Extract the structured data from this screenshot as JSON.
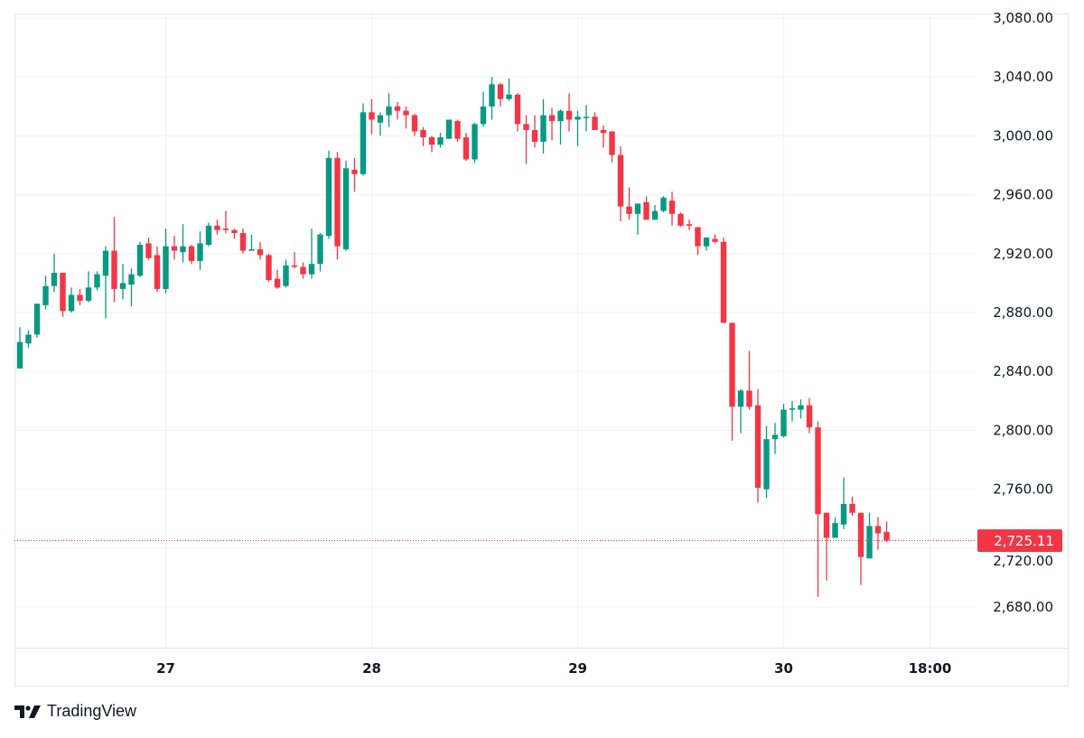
{
  "brand": {
    "name": "TradingView"
  },
  "colors": {
    "up": "#089981",
    "down": "#f23645",
    "grid": "#f0f3fa",
    "border": "#e0e3eb",
    "text": "#131722"
  },
  "chart_data": {
    "type": "candlestick",
    "interval": "1h",
    "ylim": [
      2680,
      3080
    ],
    "grid": true,
    "y_ticks": [
      "2,680.00",
      "2,720.00",
      "2,760.00",
      "2,800.00",
      "2,840.00",
      "2,880.00",
      "2,920.00",
      "2,960.00",
      "3,000.00",
      "3,040.00",
      "3,080.00"
    ],
    "y_tick_values": [
      2680,
      2720,
      2760,
      2800,
      2840,
      2880,
      2920,
      2960,
      3000,
      3040,
      3080
    ],
    "x_ticks": [
      {
        "label": "27",
        "t": "27 00:00"
      },
      {
        "label": "28",
        "t": "28 00:00"
      },
      {
        "label": "29",
        "t": "29 00:00"
      },
      {
        "label": "30",
        "t": "30 00:00"
      },
      {
        "label": "18:00",
        "t": "30 18:00"
      }
    ],
    "last_price": 2725.11,
    "last_price_label": "2,725.11",
    "candles_fields": [
      "t",
      "open",
      "high",
      "low",
      "close"
    ],
    "candles": [
      [
        "26 07:00",
        2842,
        2870,
        2842,
        2860
      ],
      [
        "26 08:00",
        2859,
        2868,
        2856,
        2865
      ],
      [
        "26 09:00",
        2865,
        2886,
        2863,
        2886
      ],
      [
        "26 10:00",
        2885,
        2905,
        2882,
        2898
      ],
      [
        "26 11:00",
        2898,
        2920,
        2894,
        2907
      ],
      [
        "26 12:00",
        2907,
        2907,
        2877,
        2881
      ],
      [
        "26 13:00",
        2881,
        2897,
        2880,
        2892
      ],
      [
        "26 14:00",
        2892,
        2896,
        2885,
        2888
      ],
      [
        "26 15:00",
        2888,
        2908,
        2887,
        2897
      ],
      [
        "26 16:00",
        2897,
        2908,
        2895,
        2906
      ],
      [
        "26 17:00",
        2905,
        2925,
        2876,
        2922
      ],
      [
        "26 18:00",
        2922,
        2945,
        2887,
        2896
      ],
      [
        "26 19:00",
        2896,
        2913,
        2889,
        2900
      ],
      [
        "26 20:00",
        2899,
        2910,
        2884,
        2906
      ],
      [
        "26 21:00",
        2905,
        2928,
        2904,
        2926
      ],
      [
        "26 22:00",
        2927,
        2931,
        2916,
        2917
      ],
      [
        "26 23:00",
        2919,
        2925,
        2894,
        2896
      ],
      [
        "27 00:00",
        2896,
        2937,
        2893,
        2925
      ],
      [
        "27 01:00",
        2925,
        2932,
        2916,
        2922
      ],
      [
        "27 02:00",
        2921,
        2940,
        2914,
        2925
      ],
      [
        "27 03:00",
        2925,
        2926,
        2913,
        2915
      ],
      [
        "27 04:00",
        2915,
        2935,
        2909,
        2927
      ],
      [
        "27 05:00",
        2926,
        2941,
        2925,
        2939
      ],
      [
        "27 06:00",
        2939,
        2943,
        2933,
        2936
      ],
      [
        "27 07:00",
        2937,
        2949,
        2934,
        2936
      ],
      [
        "27 08:00",
        2936,
        2937,
        2930,
        2934
      ],
      [
        "27 09:00",
        2934,
        2937,
        2920,
        2922
      ],
      [
        "27 10:00",
        2922,
        2933,
        2922,
        2923
      ],
      [
        "27 11:00",
        2923,
        2928,
        2916,
        2919
      ],
      [
        "27 12:00",
        2919,
        2920,
        2901,
        2902
      ],
      [
        "27 13:00",
        2903,
        2909,
        2896,
        2897
      ],
      [
        "27 14:00",
        2898,
        2916,
        2897,
        2912
      ],
      [
        "27 15:00",
        2912,
        2921,
        2910,
        2911
      ],
      [
        "27 16:00",
        2911,
        2914,
        2903,
        2906
      ],
      [
        "27 17:00",
        2906,
        2937,
        2903,
        2913
      ],
      [
        "27 18:00",
        2913,
        2934,
        2908,
        2933
      ],
      [
        "27 19:00",
        2932,
        2990,
        2930,
        2985
      ],
      [
        "27 20:00",
        2985,
        2989,
        2916,
        2925
      ],
      [
        "27 21:00",
        2923,
        2983,
        2922,
        2978
      ],
      [
        "27 22:00",
        2977,
        2985,
        2962,
        2974
      ],
      [
        "27 23:00",
        2974,
        3022,
        2973,
        3016
      ],
      [
        "28 00:00",
        3016,
        3025,
        3001,
        3011
      ],
      [
        "28 01:00",
        3009,
        3016,
        3000,
        3014
      ],
      [
        "28 02:00",
        3014,
        3029,
        3006,
        3020
      ],
      [
        "28 03:00",
        3020,
        3023,
        3011,
        3017
      ],
      [
        "28 04:00",
        3017,
        3020,
        3005,
        3014
      ],
      [
        "28 05:00",
        3014,
        3015,
        3000,
        3003
      ],
      [
        "28 06:00",
        3004,
        3006,
        2993,
        2999
      ],
      [
        "28 07:00",
        2999,
        3000,
        2989,
        2994
      ],
      [
        "28 08:00",
        2994,
        3002,
        2992,
        2999
      ],
      [
        "28 09:00",
        2998,
        3011,
        2998,
        3011
      ],
      [
        "28 10:00",
        3010,
        3011,
        2996,
        2998
      ],
      [
        "28 11:00",
        2999,
        3002,
        2983,
        2984
      ],
      [
        "28 12:00",
        2984,
        3009,
        2982,
        3008
      ],
      [
        "28 13:00",
        3008,
        3030,
        3006,
        3020
      ],
      [
        "28 14:00",
        3020,
        3040,
        3011,
        3035
      ],
      [
        "28 15:00",
        3035,
        3036,
        3020,
        3025
      ],
      [
        "28 16:00",
        3025,
        3039,
        3024,
        3028
      ],
      [
        "28 17:00",
        3028,
        3029,
        3003,
        3008
      ],
      [
        "28 18:00",
        3008,
        3014,
        2981,
        3004
      ],
      [
        "28 19:00",
        3004,
        3014,
        2992,
        2996
      ],
      [
        "28 20:00",
        2996,
        3025,
        2988,
        3014
      ],
      [
        "28 21:00",
        3014,
        3019,
        2997,
        3010
      ],
      [
        "28 22:00",
        3010,
        3018,
        2994,
        3017
      ],
      [
        "28 23:00",
        3017,
        3029,
        3003,
        3011
      ],
      [
        "29 00:00",
        3011,
        3017,
        2993,
        3013
      ],
      [
        "29 01:00",
        3013,
        3021,
        3003,
        3013
      ],
      [
        "29 02:00",
        3013,
        3016,
        3004,
        3004
      ],
      [
        "29 03:00",
        3004,
        3007,
        2992,
        3002
      ],
      [
        "29 04:00",
        3003,
        3003,
        2982,
        2987
      ],
      [
        "29 05:00",
        2987,
        2993,
        2942,
        2952
      ],
      [
        "29 06:00",
        2952,
        2965,
        2943,
        2947
      ],
      [
        "29 07:00",
        2947,
        2954,
        2933,
        2954
      ],
      [
        "29 08:00",
        2955,
        2959,
        2943,
        2943
      ],
      [
        "29 09:00",
        2943,
        2953,
        2943,
        2949
      ],
      [
        "29 10:00",
        2949,
        2959,
        2948,
        2958
      ],
      [
        "29 11:00",
        2956,
        2962,
        2939,
        2947
      ],
      [
        "29 12:00",
        2947,
        2948,
        2938,
        2939
      ],
      [
        "29 13:00",
        2940,
        2943,
        2936,
        2939
      ],
      [
        "29 14:00",
        2938,
        2938,
        2919,
        2925
      ],
      [
        "29 15:00",
        2925,
        2931,
        2922,
        2931
      ],
      [
        "29 16:00",
        2930,
        2933,
        2927,
        2928
      ],
      [
        "29 17:00",
        2928,
        2931,
        2873,
        2873
      ],
      [
        "29 18:00",
        2873,
        2873,
        2793,
        2816
      ],
      [
        "29 19:00",
        2816,
        2828,
        2798,
        2827
      ],
      [
        "29 20:00",
        2827,
        2854,
        2814,
        2816
      ],
      [
        "29 21:00",
        2817,
        2828,
        2751,
        2761
      ],
      [
        "29 22:00",
        2760,
        2803,
        2754,
        2794
      ],
      [
        "29 23:00",
        2794,
        2805,
        2784,
        2797
      ],
      [
        "30 00:00",
        2796,
        2818,
        2795,
        2814
      ],
      [
        "30 01:00",
        2814,
        2820,
        2806,
        2815
      ],
      [
        "30 02:00",
        2814,
        2821,
        2808,
        2817
      ],
      [
        "30 03:00",
        2817,
        2822,
        2798,
        2802
      ],
      [
        "30 04:00",
        2802,
        2806,
        2687,
        2743
      ],
      [
        "30 05:00",
        2744,
        2744,
        2698,
        2727
      ],
      [
        "30 06:00",
        2727,
        2741,
        2727,
        2737
      ],
      [
        "30 07:00",
        2736,
        2768,
        2733,
        2750
      ],
      [
        "30 08:00",
        2750,
        2755,
        2742,
        2744
      ],
      [
        "30 09:00",
        2744,
        2744,
        2695,
        2714
      ],
      [
        "30 10:00",
        2713,
        2744,
        2713,
        2735
      ],
      [
        "30 11:00",
        2735,
        2741,
        2719,
        2730
      ],
      [
        "30 12:00",
        2731,
        2738,
        2724,
        2725.11
      ]
    ]
  }
}
